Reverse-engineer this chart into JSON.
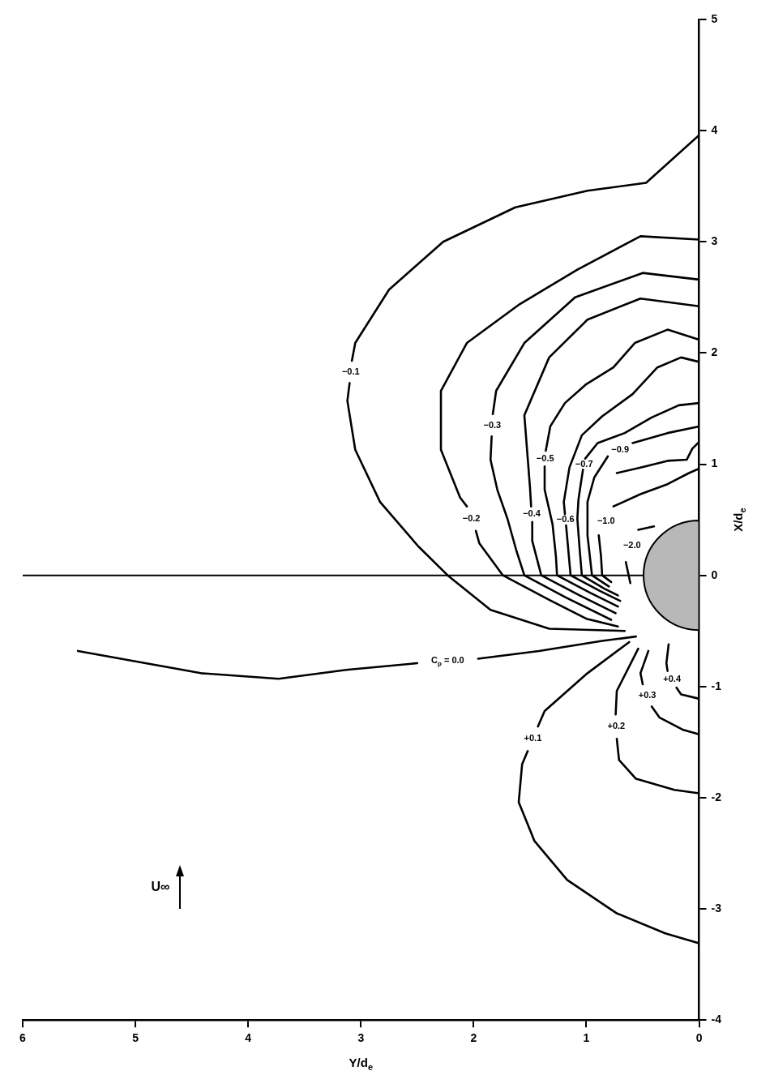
{
  "chart_data": {
    "type": "line",
    "xlabel": "Y/d$_{e}$",
    "ylabel": "X/d$_{e}$",
    "xlim": [
      6,
      0
    ],
    "ylim": [
      -4,
      5
    ],
    "xticks": [
      6,
      5,
      4,
      3,
      2,
      1,
      0
    ],
    "yticks": [
      -4,
      -3,
      -2,
      -1,
      0,
      1,
      2,
      3,
      4,
      5
    ],
    "grid": false,
    "legend": false,
    "marker": "none",
    "line_style": "solid",
    "ref_lines": [
      {
        "axis": "y",
        "value": 0,
        "color": "#000000"
      }
    ],
    "annotations": [
      "U∞"
    ],
    "series": [
      {
        "name": "−0.1",
        "color": "#000000",
        "x": [
          0,
          0.47,
          0.99,
          1.63,
          2.27,
          2.75,
          3.05,
          3.08,
          null,
          3.1,
          3.12,
          3.05,
          2.83,
          2.49,
          2.23,
          1.85,
          1.33,
          0.66
        ],
        "values": [
          3.96,
          3.53,
          3.46,
          3.31,
          3.0,
          2.57,
          2.09,
          1.93,
          null,
          1.73,
          1.57,
          1.13,
          0.66,
          0.26,
          0,
          -0.31,
          -0.48,
          -0.5
        ]
      },
      {
        "name": "−0.2",
        "color": "#000000",
        "x": [
          0,
          0.52,
          1.08,
          1.59,
          2.06,
          2.29,
          2.29,
          2.12,
          2.06,
          null,
          1.98,
          1.95,
          1.74,
          1.33,
          1.0,
          0.72
        ],
        "values": [
          3.02,
          3.05,
          2.75,
          2.44,
          2.09,
          1.66,
          1.13,
          0.7,
          0.62,
          null,
          0.4,
          0.29,
          0,
          -0.22,
          -0.39,
          -0.46
        ]
      },
      {
        "name": "−0.3",
        "color": "#000000",
        "x": [
          0,
          0.5,
          1.1,
          1.55,
          1.8,
          1.83,
          null,
          1.84,
          1.85,
          1.79,
          1.7,
          1.62,
          1.55,
          1.18,
          0.78
        ],
        "values": [
          2.66,
          2.72,
          2.5,
          2.09,
          1.66,
          1.45,
          null,
          1.25,
          1.04,
          0.77,
          0.51,
          0.22,
          0,
          -0.2,
          -0.4
        ]
      },
      {
        "name": "−0.4",
        "color": "#000000",
        "x": [
          0,
          0.52,
          0.99,
          1.33,
          1.55,
          1.5,
          1.49,
          null,
          1.48,
          1.48,
          1.4,
          1.06,
          0.74
        ],
        "values": [
          2.42,
          2.49,
          2.3,
          1.96,
          1.44,
          0.79,
          0.62,
          null,
          0.48,
          0.31,
          0,
          -0.18,
          -0.34
        ]
      },
      {
        "name": "−0.5",
        "color": "#000000",
        "x": [
          0,
          0.28,
          0.57,
          0.76,
          1.0,
          1.19,
          1.32,
          1.36,
          null,
          1.37,
          1.37,
          1.3,
          1.27,
          1.26,
          0.96,
          0.72
        ],
        "values": [
          2.12,
          2.21,
          2.09,
          1.87,
          1.72,
          1.55,
          1.34,
          1.12,
          null,
          0.98,
          0.77,
          0.46,
          0.17,
          0,
          -0.16,
          -0.28
        ]
      },
      {
        "name": "−0.6",
        "color": "#000000",
        "x": [
          0,
          0.16,
          0.37,
          0.59,
          0.86,
          1.04,
          1.15,
          1.2,
          1.19,
          null,
          1.18,
          1.17,
          1.14,
          0.88,
          0.7
        ],
        "values": [
          1.92,
          1.96,
          1.87,
          1.63,
          1.43,
          1.26,
          0.97,
          0.66,
          0.55,
          null,
          0.45,
          0.34,
          0,
          -0.14,
          -0.23
        ]
      },
      {
        "name": "−0.7",
        "color": "#000000",
        "x": [
          0,
          0.18,
          0.42,
          0.66,
          0.9,
          1.01,
          null,
          1.03,
          1.05,
          1.07,
          1.08,
          1.06,
          1.04,
          0.84,
          0.72
        ],
        "values": [
          1.55,
          1.53,
          1.42,
          1.28,
          1.19,
          1.05,
          null,
          0.95,
          0.82,
          0.68,
          0.51,
          0.24,
          0,
          -0.12,
          -0.18
        ]
      },
      {
        "name": "−0.9",
        "color": "#000000",
        "x": [
          0,
          0.28,
          0.59,
          null,
          0.81,
          0.93,
          0.99,
          0.99,
          0.95,
          0.8
        ],
        "values": [
          1.34,
          1.28,
          1.19,
          null,
          1.07,
          0.88,
          0.66,
          0.36,
          0,
          -0.1
        ]
      },
      {
        "name": "−1.0",
        "color": "#000000",
        "x": [
          0,
          0.09,
          0.28,
          0.52,
          0.76,
          null,
          0.89,
          0.87,
          0.86,
          0.78
        ],
        "values": [
          0.96,
          0.92,
          0.82,
          0.73,
          0.62,
          null,
          0.36,
          0.17,
          0,
          -0.06
        ]
      },
      {
        "name": "−2.0",
        "color": "#000000",
        "x": [
          0.4,
          0.54,
          null,
          0.65,
          0.61
        ],
        "values": [
          0.44,
          0.41,
          null,
          0.12,
          -0.07
        ]
      },
      {
        "color": "#000000",
        "x": [
          0,
          0.06,
          0.11,
          0.28,
          0.52,
          0.73
        ],
        "values": [
          1.2,
          1.14,
          1.04,
          1.03,
          0.97,
          0.92
        ]
      },
      {
        "name": "C$_{p}$ = 0.0",
        "color": "#000000",
        "x": [
          5.51,
          4.42,
          3.73,
          3.13,
          2.5,
          null,
          1.96,
          1.42,
          0.86,
          0.56
        ],
        "values": [
          -0.68,
          -0.88,
          -0.93,
          -0.85,
          -0.79,
          null,
          -0.75,
          -0.68,
          -0.59,
          -0.55
        ]
      },
      {
        "name": "+0.1",
        "color": "#000000",
        "x": [
          0.62,
          0.99,
          1.37,
          1.43,
          null,
          1.52,
          1.57,
          1.6,
          1.46,
          1.17,
          0.73,
          0.3,
          0
        ],
        "values": [
          -0.6,
          -0.88,
          -1.22,
          -1.36,
          null,
          -1.58,
          -1.7,
          -2.04,
          -2.39,
          -2.74,
          -3.04,
          -3.22,
          -3.31
        ]
      },
      {
        "name": "+0.2",
        "color": "#000000",
        "x": [
          0.54,
          0.73,
          0.74,
          null,
          0.73,
          0.71,
          0.56,
          0.22,
          0
        ],
        "values": [
          -0.66,
          -1.04,
          -1.25,
          null,
          -1.47,
          -1.66,
          -1.83,
          -1.93,
          -1.96
        ]
      },
      {
        "name": "+0.3",
        "color": "#000000",
        "x": [
          0.45,
          0.52,
          0.5,
          null,
          0.42,
          0.35,
          0.14,
          0
        ],
        "values": [
          -0.68,
          -0.88,
          -0.98,
          null,
          -1.18,
          -1.28,
          -1.39,
          -1.43
        ]
      },
      {
        "name": "+0.4",
        "color": "#000000",
        "x": [
          0.27,
          0.29,
          0.28,
          null,
          0.2,
          0.16,
          0
        ],
        "values": [
          -0.62,
          -0.79,
          -0.86,
          null,
          -1.01,
          -1.07,
          -1.11
        ]
      }
    ]
  }
}
